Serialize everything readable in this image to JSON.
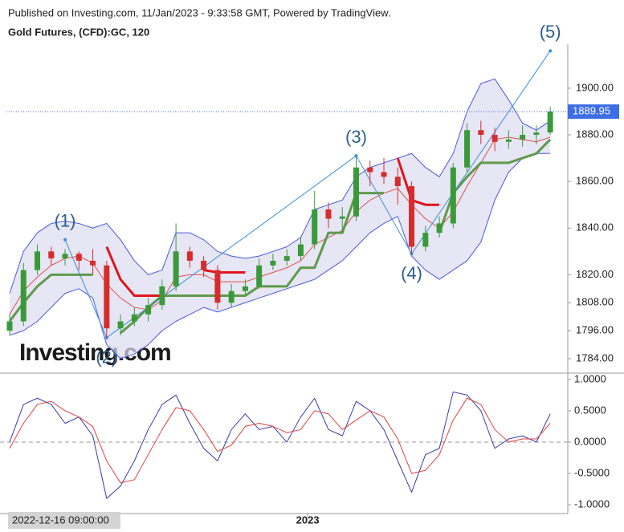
{
  "header": {
    "published": "Published on Investing.com, 11/Jan/2023 - 9:33:58 GMT, Powered by TradingView.",
    "symbol": "Gold Futures, (CFD):GC, 120",
    "watermark": "Investing.com"
  },
  "chart_data": [
    {
      "type": "candlestick",
      "ylim": [
        1777.8,
        1918.9
      ],
      "yticks": [
        {
          "value": 1784,
          "label": "1784.00"
        },
        {
          "value": 1796,
          "label": "1796.00"
        },
        {
          "value": 1808,
          "label": "1808.00"
        },
        {
          "value": 1820,
          "label": "1820.00"
        },
        {
          "value": 1840,
          "label": "1840.00"
        },
        {
          "value": 1860,
          "label": "1860.00"
        },
        {
          "value": 1880,
          "label": "1880.00"
        },
        {
          "value": 1900,
          "label": "1900.00"
        }
      ],
      "xticks": [
        {
          "value": 21.5,
          "label": "2023"
        }
      ],
      "crosshair_label": "2022-12-16 09:00:00",
      "last_price": 1889.95,
      "last_color": "#3d6ee6",
      "up_color": "#3a9a3a",
      "down_color": "#d62c2c",
      "open": [
        1796,
        1800,
        1822,
        1830,
        1827,
        1829,
        1826,
        1824,
        1797,
        1800,
        1803,
        1807,
        1815,
        1830,
        1826,
        1822,
        1808,
        1813,
        1815,
        1824,
        1826,
        1828,
        1833,
        1848,
        1844,
        1845,
        1866,
        1864,
        1862,
        1858,
        1832,
        1838,
        1842,
        1866,
        1882,
        1880,
        1877,
        1878,
        1880,
        1881
      ],
      "high": [
        1803,
        1825,
        1833,
        1832,
        1831,
        1830,
        1831,
        1826,
        1803,
        1806,
        1810,
        1818,
        1842,
        1832,
        1828,
        1824,
        1816,
        1818,
        1827,
        1829,
        1831,
        1836,
        1856,
        1851,
        1849,
        1871,
        1869,
        1870,
        1866,
        1860,
        1841,
        1845,
        1868,
        1885,
        1886,
        1883,
        1882,
        1884,
        1884,
        1892
      ],
      "low": [
        1794,
        1798,
        1820,
        1824,
        1824,
        1822,
        1820,
        1793,
        1794,
        1798,
        1800,
        1805,
        1813,
        1823,
        1819,
        1805,
        1806,
        1811,
        1814,
        1822,
        1824,
        1826,
        1831,
        1840,
        1838,
        1843,
        1858,
        1859,
        1850,
        1829,
        1830,
        1836,
        1840,
        1864,
        1876,
        1873,
        1874,
        1875,
        1876,
        1880
      ],
      "close": [
        1800,
        1822,
        1830,
        1827,
        1829,
        1826,
        1824,
        1797,
        1800,
        1803,
        1807,
        1815,
        1830,
        1826,
        1822,
        1808,
        1813,
        1815,
        1824,
        1826,
        1828,
        1833,
        1848,
        1844,
        1845,
        1866,
        1864,
        1862,
        1858,
        1832,
        1838,
        1842,
        1866,
        1882,
        1880,
        1877,
        1878,
        1880,
        1881,
        1890
      ],
      "band_fill": "#dcdcf0",
      "overlays": [
        {
          "color": "#4a5ae0",
          "width": 1,
          "values": [
            1812,
            1830,
            1838,
            1842,
            1843,
            1842,
            1840,
            1842,
            1835,
            1826,
            1820,
            1822,
            1838,
            1838,
            1835,
            1830,
            1828,
            1827,
            1828,
            1830,
            1832,
            1836,
            1848,
            1850,
            1852,
            1862,
            1866,
            1868,
            1870,
            1872,
            1866,
            1862,
            1872,
            1890,
            1902,
            1904,
            1895,
            1885,
            1882,
            1886
          ]
        },
        {
          "color": "#4a5ae0",
          "width": 1,
          "values": [
            1794,
            1796,
            1800,
            1806,
            1812,
            1814,
            1810,
            1790,
            1784,
            1786,
            1790,
            1796,
            1800,
            1803,
            1806,
            1804,
            1806,
            1808,
            1810,
            1812,
            1814,
            1816,
            1818,
            1822,
            1826,
            1832,
            1838,
            1842,
            1845,
            1828,
            1822,
            1818,
            1822,
            1826,
            1834,
            1852,
            1864,
            1870,
            1872,
            1872
          ]
        },
        {
          "color": "#e05050",
          "width": 1,
          "values": [
            1803,
            1813,
            1819,
            1824,
            1827,
            1828,
            1825,
            1816,
            1810,
            1806,
            1805,
            1809,
            1819,
            1820,
            1820,
            1817,
            1817,
            1817,
            1819,
            1821,
            1823,
            1826,
            1833,
            1836,
            1839,
            1847,
            1852,
            1855,
            1857,
            1850,
            1844,
            1840,
            1847,
            1858,
            1868,
            1878,
            1879,
            1878,
            1877,
            1879
          ]
        },
        {
          "color": "#e0141e",
          "width": 3,
          "values": [
            null,
            null,
            null,
            null,
            null,
            null,
            null,
            1832,
            1818,
            1811,
            1811,
            1811,
            null,
            null,
            1822,
            1821,
            1821,
            1821,
            null,
            null,
            null,
            null,
            null,
            null,
            null,
            null,
            null,
            null,
            1870,
            1852,
            1850,
            1850,
            null,
            null,
            null,
            null,
            null,
            null,
            null,
            null
          ]
        },
        {
          "color": "#5f9a4a",
          "width": 3,
          "values": [
            1800,
            1808,
            1815,
            1820,
            1820,
            1820,
            1820,
            null,
            1795,
            1800,
            1806,
            1811,
            1811,
            1811,
            1811,
            1811,
            1811,
            1811,
            1815,
            1815,
            1815,
            1823,
            1823,
            1838,
            1838,
            1855,
            1855,
            1855,
            null,
            null,
            null,
            1838,
            1855,
            1862,
            1868,
            1868,
            1868,
            1870,
            1872,
            1878
          ]
        }
      ],
      "wave_color": "#3b8fd8",
      "waves": [
        {
          "label": "(1)",
          "index": 4,
          "value": 1835
        },
        {
          "label": "(2)",
          "index": 7,
          "value": 1793
        },
        {
          "label": "(3)",
          "index": 25,
          "value": 1871
        },
        {
          "label": "(4)",
          "index": 29,
          "value": 1829
        },
        {
          "label": "(5)",
          "index": 39,
          "value": 1916
        }
      ]
    },
    {
      "type": "line",
      "ylim": [
        -1.14,
        1.1
      ],
      "yticks": [
        {
          "value": 1,
          "label": "1.0000"
        },
        {
          "value": 0.5,
          "label": "0.5000"
        },
        {
          "value": 0,
          "label": "0.0000"
        },
        {
          "value": -0.5,
          "label": "-0.5000"
        },
        {
          "value": -1,
          "label": "-1.0000"
        }
      ],
      "zero_line": 0,
      "series": [
        {
          "color": "#3a3aa8",
          "values": [
            0.0,
            0.6,
            0.7,
            0.6,
            0.3,
            0.4,
            0.1,
            -0.9,
            -0.7,
            -0.3,
            0.2,
            0.6,
            0.75,
            0.3,
            -0.1,
            -0.3,
            0.2,
            0.45,
            0.2,
            0.25,
            0.0,
            0.4,
            0.7,
            0.2,
            0.1,
            0.65,
            0.5,
            0.2,
            -0.3,
            -0.8,
            -0.2,
            -0.1,
            0.8,
            0.75,
            0.5,
            -0.1,
            0.05,
            0.1,
            0.0,
            0.45
          ]
        },
        {
          "color": "#e04040",
          "values": [
            -0.1,
            0.3,
            0.6,
            0.65,
            0.5,
            0.4,
            0.25,
            -0.3,
            -0.65,
            -0.6,
            -0.2,
            0.2,
            0.55,
            0.5,
            0.2,
            -0.15,
            -0.05,
            0.25,
            0.3,
            0.25,
            0.15,
            0.2,
            0.5,
            0.45,
            0.2,
            0.35,
            0.5,
            0.4,
            0.05,
            -0.5,
            -0.45,
            -0.2,
            0.35,
            0.7,
            0.6,
            0.2,
            0.0,
            0.05,
            0.05,
            0.3
          ]
        }
      ]
    }
  ]
}
